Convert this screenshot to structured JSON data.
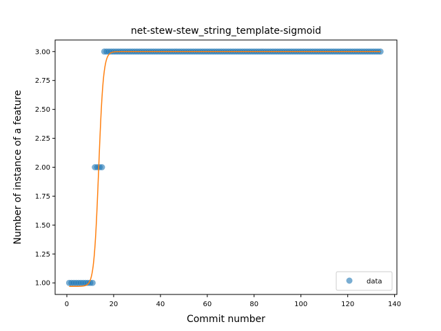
{
  "chart_data": {
    "type": "scatter",
    "title": "net-stew-stew_string_template-sigmoid",
    "xlabel": "Commit number",
    "ylabel": "Number of instance of a feature",
    "xlim": [
      -5,
      141
    ],
    "ylim": [
      0.9,
      3.1
    ],
    "xticks": [
      0,
      20,
      40,
      60,
      80,
      100,
      120,
      140
    ],
    "yticks": [
      1.0,
      1.25,
      1.5,
      1.75,
      2.0,
      2.25,
      2.5,
      2.75,
      3.0
    ],
    "xtick_labels": [
      "0",
      "20",
      "40",
      "60",
      "80",
      "100",
      "120",
      "140"
    ],
    "ytick_labels": [
      "1.00",
      "1.25",
      "1.50",
      "1.75",
      "2.00",
      "2.25",
      "2.50",
      "2.75",
      "3.00"
    ],
    "legend": {
      "position": "lower-right",
      "entries": [
        {
          "label": "data"
        }
      ]
    },
    "grid": false,
    "series": [
      {
        "name": "data",
        "kind": "scatter",
        "color": "#1f77b4",
        "segments": [
          {
            "x_from": 1,
            "x_to": 11,
            "y": 1
          },
          {
            "x_from": 12,
            "x_to": 15,
            "y": 2
          },
          {
            "x_from": 16,
            "x_to": 134,
            "y": 3
          }
        ]
      },
      {
        "kind": "line",
        "color": "#ff7f0e",
        "model": "sigmoid",
        "params": {
          "L": 2.03,
          "k": 1.0,
          "x0": 13.6,
          "b": 0.97
        },
        "x_range": [
          1,
          134
        ]
      }
    ]
  }
}
